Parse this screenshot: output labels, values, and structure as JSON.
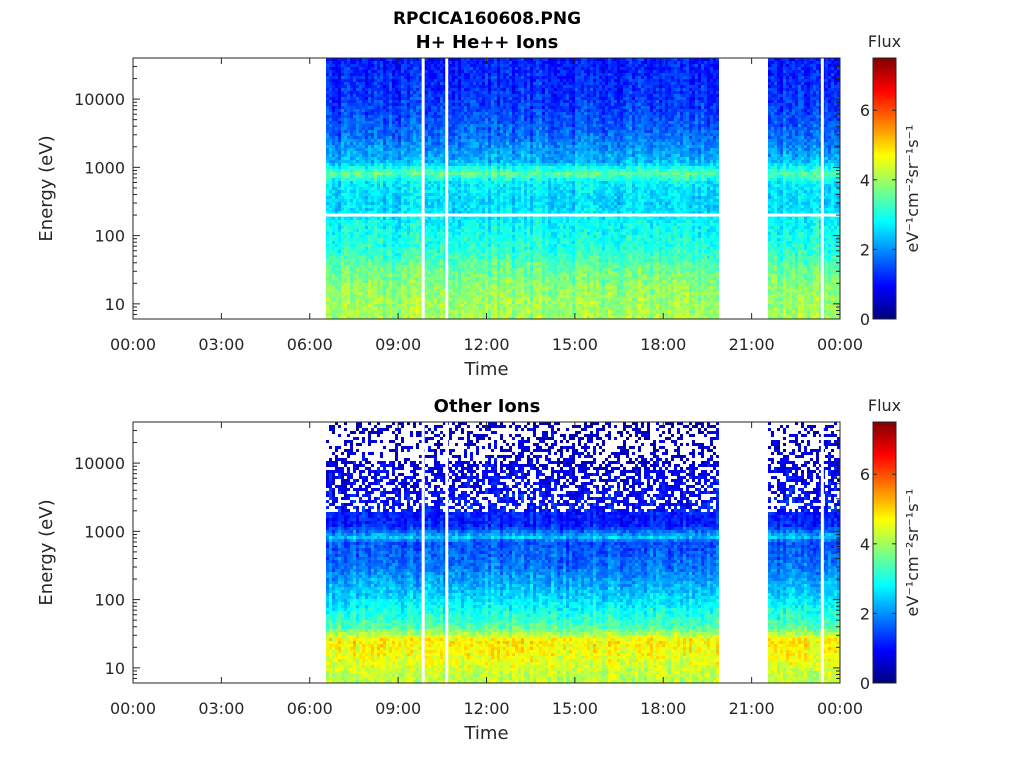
{
  "figure": {
    "title_line1": "RPCICA160608.PNG"
  },
  "colors": {
    "jet_stops": [
      "#00007f",
      "#0000ff",
      "#007fff",
      "#00ffff",
      "#7fff7f",
      "#ffff00",
      "#ff7f00",
      "#ff0000",
      "#7f0000"
    ],
    "gap_color": "#ffffff",
    "axis_color": "#262626"
  },
  "chart_data": [
    {
      "type": "heatmap",
      "title": "H+ He++ Ions",
      "xlabel": "Time",
      "ylabel": "Energy (eV)",
      "yscale": "log",
      "ylim": [
        6,
        40000
      ],
      "xlim_hours": [
        0,
        24
      ],
      "x_ticks": [
        "00:00",
        "03:00",
        "06:00",
        "09:00",
        "12:00",
        "15:00",
        "18:00",
        "21:00",
        "00:00"
      ],
      "y_ticks": [
        10,
        100,
        1000,
        10000
      ],
      "y_tick_labels": [
        "10",
        "100",
        "1000",
        "10000"
      ],
      "colorbar": {
        "label": "Flux",
        "unit_label": "eV⁻¹cm⁻²sr⁻¹s⁻¹",
        "range": [
          0,
          7.5
        ],
        "ticks": [
          0,
          2,
          4,
          6
        ],
        "tick_labels": [
          "0",
          "2",
          "4",
          "6"
        ]
      },
      "data_intervals_hours": [
        [
          6.55,
          19.9
        ],
        [
          21.55,
          24.0
        ]
      ],
      "gap_lines_hours": [
        9.85,
        10.65,
        23.4
      ],
      "horizontal_gap_energy_ev": 200,
      "spectrum_profile": [
        {
          "energy_ev": 7,
          "flux": 4.0
        },
        {
          "energy_ev": 15,
          "flux": 3.9
        },
        {
          "energy_ev": 30,
          "flux": 3.6
        },
        {
          "energy_ev": 60,
          "flux": 3.1
        },
        {
          "energy_ev": 150,
          "flux": 2.8
        },
        {
          "energy_ev": 300,
          "flux": 2.5
        },
        {
          "energy_ev": 600,
          "flux": 2.7
        },
        {
          "energy_ev": 800,
          "flux": 3.5
        },
        {
          "energy_ev": 1200,
          "flux": 2.3
        },
        {
          "energy_ev": 3000,
          "flux": 1.7
        },
        {
          "energy_ev": 10000,
          "flux": 1.3
        },
        {
          "energy_ev": 40000,
          "flux": 1.1
        }
      ]
    },
    {
      "type": "heatmap",
      "title": "Other Ions",
      "xlabel": "Time",
      "ylabel": "Energy (eV)",
      "yscale": "log",
      "ylim": [
        6,
        40000
      ],
      "xlim_hours": [
        0,
        24
      ],
      "x_ticks": [
        "00:00",
        "03:00",
        "06:00",
        "09:00",
        "12:00",
        "15:00",
        "18:00",
        "21:00",
        "00:00"
      ],
      "y_ticks": [
        10,
        100,
        1000,
        10000
      ],
      "y_tick_labels": [
        "10",
        "100",
        "1000",
        "10000"
      ],
      "colorbar": {
        "label": "Flux",
        "unit_label": "eV⁻¹cm⁻²sr⁻¹s⁻¹",
        "range": [
          0,
          7.5
        ],
        "ticks": [
          0,
          2,
          4,
          6
        ],
        "tick_labels": [
          "0",
          "2",
          "4",
          "6"
        ]
      },
      "data_intervals_hours": [
        [
          6.55,
          19.9
        ],
        [
          21.55,
          24.0
        ]
      ],
      "gap_lines_hours": [
        9.85,
        10.65,
        23.4
      ],
      "horizontal_gap_energy_ev": null,
      "spectrum_profile": [
        {
          "energy_ev": 7,
          "flux": 4.2
        },
        {
          "energy_ev": 15,
          "flux": 4.6
        },
        {
          "energy_ev": 25,
          "flux": 4.8
        },
        {
          "energy_ev": 40,
          "flux": 3.4
        },
        {
          "energy_ev": 100,
          "flux": 2.6
        },
        {
          "energy_ev": 300,
          "flux": 1.8
        },
        {
          "energy_ev": 700,
          "flux": 1.5
        },
        {
          "energy_ev": 800,
          "flux": 2.4
        },
        {
          "energy_ev": 1200,
          "flux": 1.2
        },
        {
          "energy_ev": 5000,
          "flux": 0.9
        },
        {
          "energy_ev": 11000,
          "flux": 0.7
        },
        {
          "energy_ev": 40000,
          "flux": 0.5
        }
      ]
    }
  ]
}
